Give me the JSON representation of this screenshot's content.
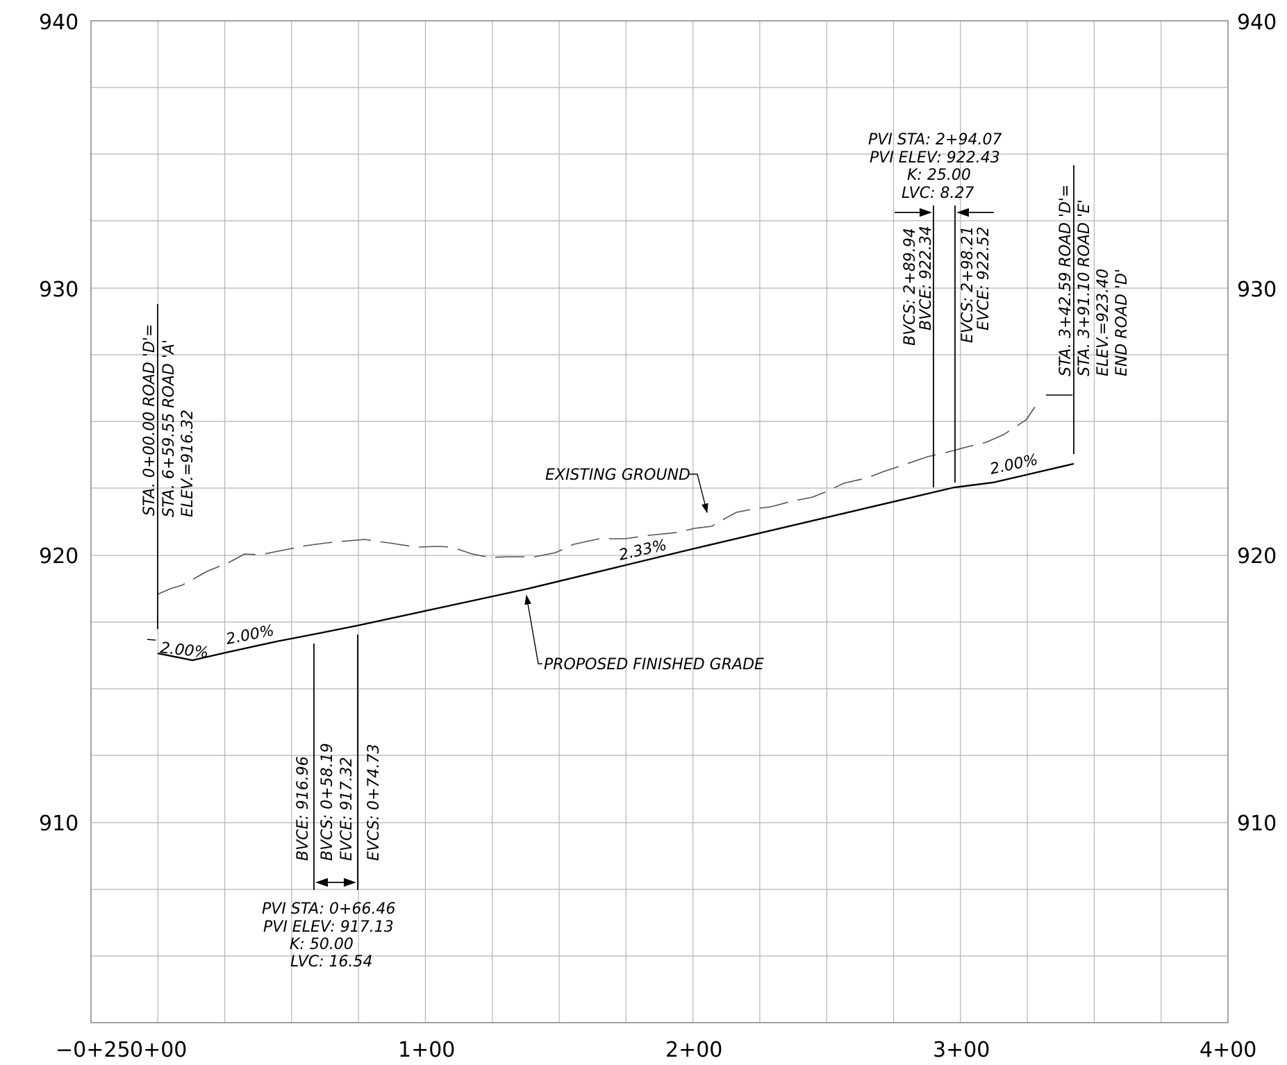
{
  "x_ticks": [
    "−0+25",
    "0+00",
    "1+00",
    "2+00",
    "3+00",
    "4+00"
  ],
  "y_ticks_left": [
    "940",
    "930",
    "920",
    "910"
  ],
  "y_ticks_right": [
    "940",
    "930",
    "920",
    "910"
  ],
  "existing_ground_label": "EXISTING  GROUND",
  "proposed_grade_label": "PROPOSED  FINISHED  GRADE",
  "grades": [
    "2.00%",
    "2.00%",
    "2.33%",
    "2.00%"
  ],
  "start_note": {
    "line1": "STA.  0+00.00  ROAD  'D'=",
    "line2": "STA.  6+59.55  ROAD  'A'",
    "line3": "ELEV.=916.32"
  },
  "end_note": {
    "line1": "STA.  3+42.59  ROAD  'D'=",
    "line2": "STA.  3+91.10  ROAD  'E'",
    "line3": "ELEV.=923.40",
    "line4": "END  ROAD  'D'"
  },
  "curve1": {
    "bvce": "BVCE:  916.96",
    "bvcs": "BVCS:  0+58.19",
    "evce": "EVCE:  917.32",
    "evcs": "EVCS:  0+74.73",
    "pvi_sta": "PVI  STA:  0+66.46",
    "pvi_elev": "PVI  ELEV:  917.13",
    "k": "K:  50.00",
    "lvc": "LVC:  16.54"
  },
  "curve2": {
    "pvi_sta": "PVI  STA:  2+94.07",
    "pvi_elev": "PVI  ELEV:  922.43",
    "k": "K:  25.00",
    "lvc": "LVC:  8.27",
    "bvcs_line1": "BVCS:  2+89.94",
    "bvcs_line2": "BVCE:  922.34",
    "evcs_line1": "EVCS:  2+98.21",
    "evcs_line2": "EVCE:  922.52"
  },
  "colors": {
    "grid": "#b4b4b4",
    "profile": "#000000",
    "existing_ground": "#555555"
  }
}
